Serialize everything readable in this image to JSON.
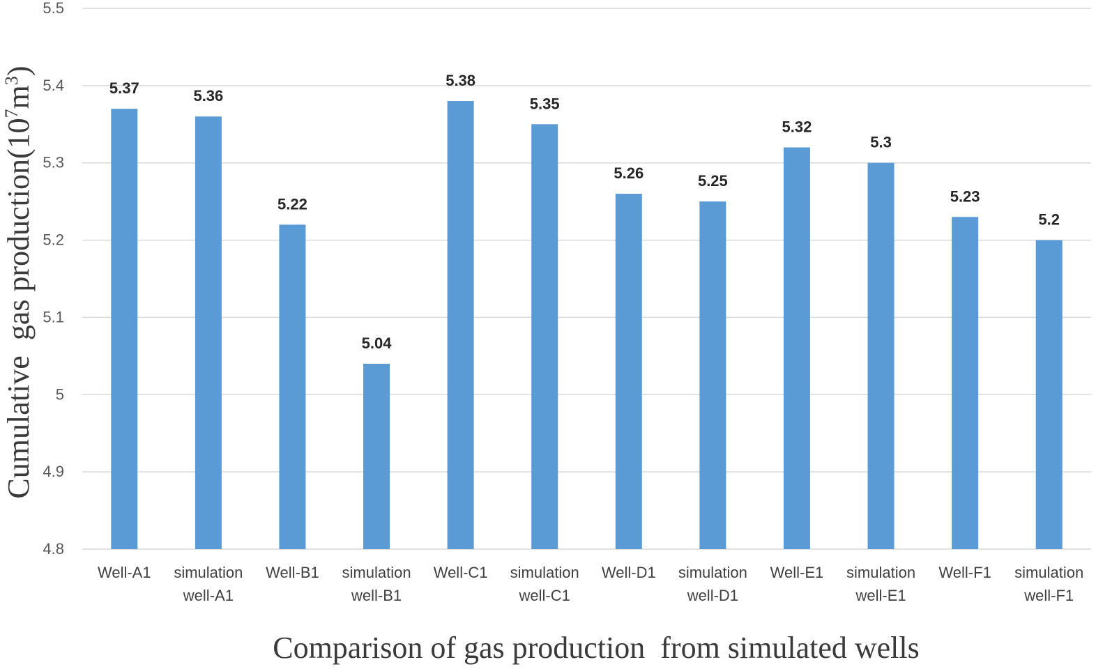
{
  "chart_data": {
    "type": "bar",
    "categories": [
      [
        "Well-A1"
      ],
      [
        "simulation",
        "well-A1"
      ],
      [
        "Well-B1"
      ],
      [
        "simulation",
        "well-B1"
      ],
      [
        "Well-C1"
      ],
      [
        "simulation",
        "well-C1"
      ],
      [
        "Well-D1"
      ],
      [
        "simulation",
        "well-D1"
      ],
      [
        "Well-E1"
      ],
      [
        "simulation",
        "well-E1"
      ],
      [
        "Well-F1"
      ],
      [
        "simulation",
        "well-F1"
      ]
    ],
    "values": [
      5.37,
      5.36,
      5.22,
      5.04,
      5.38,
      5.35,
      5.26,
      5.25,
      5.32,
      5.3,
      5.23,
      5.2
    ],
    "data_labels": [
      "5.37",
      "5.36",
      "5.22",
      "5.04",
      "5.38",
      "5.35",
      "5.26",
      "5.25",
      "5.32",
      "5.3",
      "5.23",
      "5.2"
    ],
    "xlabel": "Comparison of gas production  from simulated wells",
    "ylabel_main": "Cumulative  gas production(10",
    "ylabel_sup": "7",
    "ylabel_unit": "m",
    "ylabel_unit_sup": "3",
    "ylabel_close": ")",
    "ylim": [
      4.8,
      5.5
    ],
    "yticks": [
      4.8,
      4.9,
      5,
      5.1,
      5.2,
      5.3,
      5.4,
      5.5
    ],
    "ytick_labels": [
      "4.8",
      "4.9",
      "5",
      "5.1",
      "5.2",
      "5.3",
      "5.4",
      "5.5"
    ],
    "grid": true,
    "legend": "none",
    "bar_color": "#5b9bd5"
  }
}
